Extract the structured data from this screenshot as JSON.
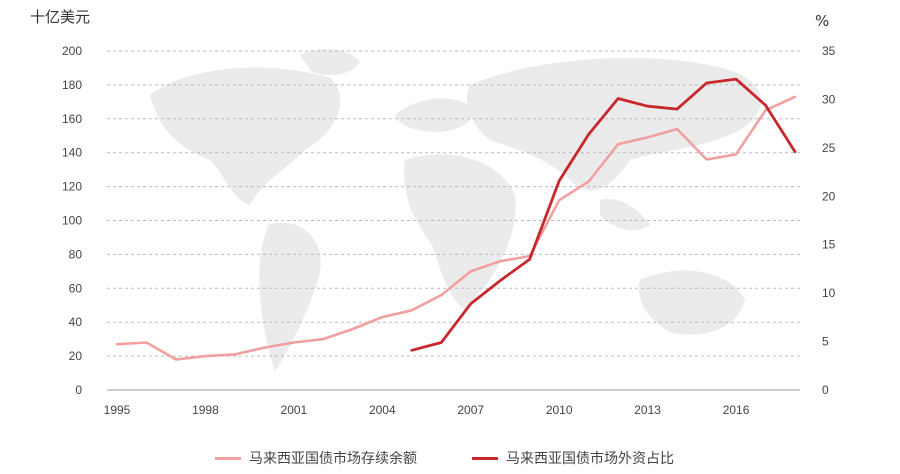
{
  "colors": {
    "outstanding": "#f0a0a0",
    "foreign_share": "#c8282c",
    "grid": "#bbbbbb",
    "map": "#ebebeb"
  },
  "chart_data": {
    "type": "line",
    "left_axis_unit": "十亿美元",
    "right_axis_unit": "%",
    "y_left_ticks": [
      "0",
      "20",
      "40",
      "60",
      "80",
      "100",
      "120",
      "140",
      "160",
      "180",
      "200"
    ],
    "y_right_ticks": [
      "0",
      "5",
      "10",
      "15",
      "20",
      "25",
      "30",
      "35"
    ],
    "x_ticks": [
      "1995",
      "1998",
      "2001",
      "2004",
      "2007",
      "2010",
      "2013",
      "2016"
    ],
    "ylim_left": [
      0,
      200
    ],
    "ylim_right": [
      0,
      35
    ],
    "xlim": [
      1995,
      2018
    ],
    "grid": true,
    "legend_position": "bottom",
    "series": [
      {
        "name": "马来西亚国债市场存续余额",
        "axis": "left",
        "x": [
          1995,
          1996,
          1997,
          1998,
          1999,
          2000,
          2001,
          2002,
          2003,
          2004,
          2005,
          2006,
          2007,
          2008,
          2009,
          2010,
          2011,
          2012,
          2013,
          2014,
          2015,
          2016,
          2017,
          2018
        ],
        "values": [
          27,
          28,
          18,
          20,
          21,
          25,
          28,
          30,
          36,
          43,
          47,
          56,
          70,
          76,
          79,
          112,
          123,
          145,
          149,
          154,
          136,
          139,
          165,
          173
        ]
      },
      {
        "name": "马来西亚国债市场外资占比",
        "axis": "right",
        "x": [
          2005,
          2006,
          2007,
          2008,
          2009,
          2010,
          2011,
          2012,
          2013,
          2014,
          2015,
          2016,
          2017,
          2018
        ],
        "values": [
          4.1,
          4.9,
          8.9,
          11.3,
          13.5,
          21.6,
          26.4,
          30.1,
          29.3,
          29.0,
          31.7,
          32.1,
          29.4,
          24.6
        ]
      }
    ]
  }
}
